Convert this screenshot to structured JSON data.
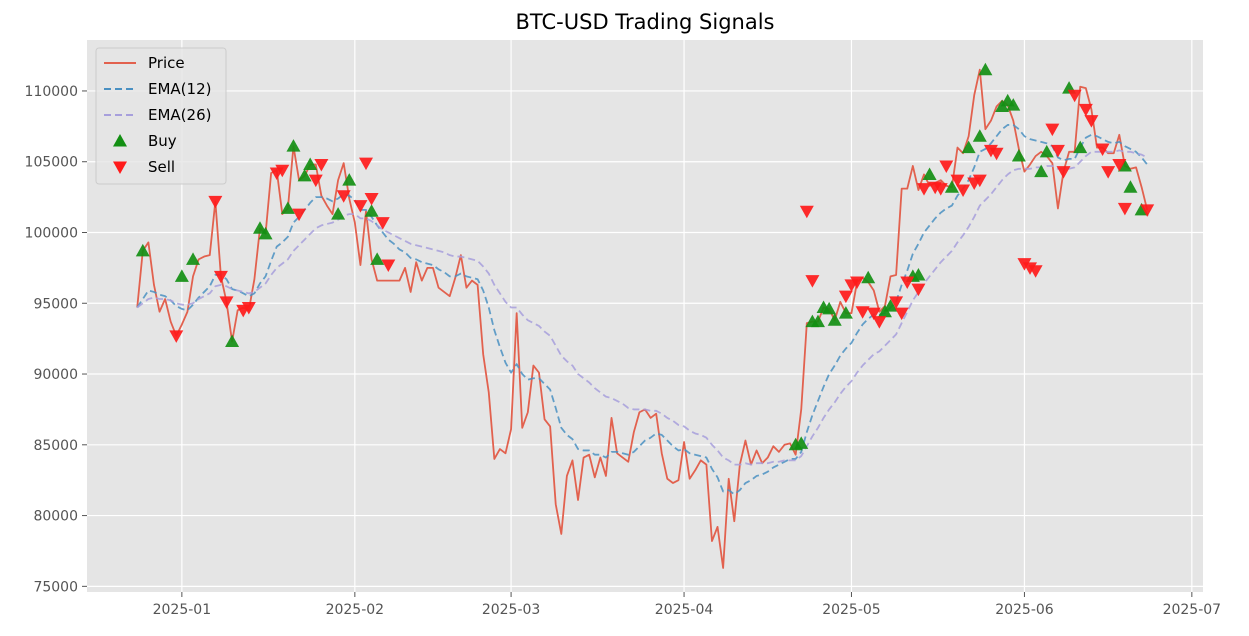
{
  "chart_data": {
    "type": "line",
    "title": "BTC-USD Trading Signals",
    "xlabel": "",
    "ylabel": "",
    "start_date": "2024-12-24",
    "xlim": [
      "2024-12-15",
      "2025-07-03"
    ],
    "ylim": [
      74600,
      113600
    ],
    "grid": true,
    "legend_position": "upper left",
    "x_ticks": [
      "2025-01-01",
      "2025-02-01",
      "2025-03-01",
      "2025-04-01",
      "2025-05-01",
      "2025-06-01",
      "2025-07-01"
    ],
    "x_tick_labels": [
      "2025-01",
      "2025-02",
      "2025-03",
      "2025-04",
      "2025-05",
      "2025-06",
      "2025-07"
    ],
    "y_ticks": [
      75000,
      80000,
      85000,
      90000,
      95000,
      100000,
      105000,
      110000
    ],
    "y_tick_labels": [
      "75000",
      "80000",
      "85000",
      "90000",
      "95000",
      "100000",
      "105000",
      "110000"
    ],
    "colors": {
      "price": "#e2614e",
      "ema12": "#4a90c2",
      "ema26": "#a79fdc",
      "buy": "#138f13",
      "sell": "#ff1a1a",
      "plot_bg": "#e5e5e5",
      "grid": "#ffffff"
    },
    "series": [
      {
        "name": "Price",
        "style": "solid",
        "values": [
          94700,
          98700,
          99300,
          96300,
          94400,
          95300,
          93700,
          92700,
          93500,
          94400,
          96900,
          98100,
          98300,
          98400,
          102200,
          96900,
          95100,
          92300,
          94500,
          94700,
          94500,
          96700,
          100300,
          99900,
          104200,
          104400,
          101300,
          101700,
          106100,
          103700,
          104000,
          104800,
          104800,
          102600,
          101900,
          101300,
          103700,
          104900,
          102400,
          100700,
          97700,
          101500,
          98100,
          96600,
          96600,
          96600,
          96600,
          96600,
          97500,
          95800,
          97900,
          96600,
          97500,
          97500,
          96100,
          95800,
          95500,
          96800,
          98400,
          96100,
          96600,
          96300,
          91400,
          88700,
          84000,
          84700,
          84400,
          86100,
          94300,
          86200,
          87300,
          90600,
          90100,
          86800,
          86300,
          80800,
          78700,
          82800,
          83900,
          81100,
          84100,
          84300,
          82700,
          84100,
          82800,
          86900,
          84400,
          84100,
          83800,
          85900,
          87300,
          87500,
          86900,
          87200,
          84400,
          82600,
          82300,
          82500,
          85200,
          82600,
          83200,
          83900,
          83600,
          78200,
          79200,
          76300,
          82600,
          79600,
          83600,
          85300,
          83600,
          84600,
          83700,
          84100,
          84900,
          84500,
          85000,
          85100,
          84300,
          87500,
          93600,
          93700,
          93700,
          94700,
          94600,
          93800,
          95100,
          94300,
          94300,
          96500,
          96800,
          96500,
          95900,
          94400,
          94800,
          96900,
          97000,
          103100,
          103100,
          104700,
          103000,
          104100,
          103300,
          103500,
          103700,
          103300,
          103200,
          106000,
          105600,
          106800,
          109700,
          111500,
          107300,
          107900,
          108900,
          109300,
          109000,
          107900,
          105900,
          104300,
          104800,
          105400,
          105700,
          105400,
          104900,
          101700,
          104300,
          105700,
          105700,
          110300,
          110200,
          108700,
          106000,
          106000,
          105600,
          105600,
          106900,
          104700,
          104500,
          104600,
          103200,
          101600
        ]
      },
      {
        "name": "EMA(12)",
        "style": "dashed",
        "values": [
          94700,
          95300,
          95900,
          95800,
          95600,
          95500,
          95200,
          94800,
          94600,
          94500,
          94900,
          95400,
          95800,
          96200,
          97000,
          97000,
          96700,
          96000,
          95900,
          95700,
          95500,
          95700,
          96400,
          96900,
          98000,
          99000,
          99300,
          99700,
          100700,
          101100,
          101600,
          102100,
          102500,
          102500,
          102400,
          102200,
          102400,
          102700,
          102600,
          102300,
          101600,
          101600,
          101100,
          100500,
          100000,
          99500,
          99200,
          98800,
          98600,
          98200,
          98100,
          97900,
          97800,
          97700,
          97400,
          97200,
          96900,
          96900,
          97100,
          96900,
          96800,
          96700,
          95900,
          94700,
          93100,
          91900,
          90800,
          90100,
          90700,
          90000,
          89600,
          89700,
          89700,
          89300,
          88900,
          87600,
          86200,
          85700,
          85400,
          84700,
          84600,
          84600,
          84300,
          84300,
          84100,
          84500,
          84500,
          84400,
          84300,
          84500,
          84900,
          85300,
          85500,
          85800,
          85700,
          85300,
          84900,
          84600,
          84700,
          84400,
          84300,
          84200,
          84100,
          83300,
          82700,
          81700,
          81800,
          81500,
          81800,
          82300,
          82500,
          82800,
          82900,
          83100,
          83400,
          83600,
          83800,
          84000,
          84000,
          84500,
          85900,
          87100,
          88100,
          89100,
          90000,
          90600,
          91300,
          91800,
          92200,
          92900,
          93500,
          93900,
          94200,
          94200,
          94300,
          94700,
          95100,
          96300,
          97300,
          98500,
          99200,
          100000,
          100500,
          101000,
          101400,
          101700,
          101900,
          102600,
          103100,
          103700,
          104600,
          105700,
          105900,
          106300,
          106800,
          107300,
          107600,
          107600,
          107300,
          106800,
          106600,
          106500,
          106400,
          106300,
          106100,
          105300,
          105100,
          105200,
          105200,
          106000,
          106700,
          106900,
          106800,
          106600,
          106400,
          106300,
          106400,
          106100,
          105900,
          105700,
          105300,
          104800
        ]
      },
      {
        "name": "EMA(26)",
        "style": "dashed",
        "values": [
          94700,
          95000,
          95300,
          95400,
          95300,
          95300,
          95200,
          95000,
          94900,
          94900,
          95000,
          95300,
          95500,
          95700,
          96200,
          96300,
          96200,
          96000,
          95900,
          95800,
          95700,
          95800,
          96100,
          96400,
          97000,
          97500,
          97800,
          98100,
          98700,
          99100,
          99500,
          99900,
          100300,
          100500,
          100600,
          100700,
          100900,
          101200,
          101300,
          101300,
          101000,
          101000,
          100800,
          100500,
          100200,
          100000,
          99800,
          99600,
          99400,
          99200,
          99100,
          99000,
          98900,
          98800,
          98700,
          98600,
          98400,
          98300,
          98300,
          98200,
          98100,
          98000,
          97600,
          97100,
          96300,
          95700,
          95100,
          94700,
          94700,
          94200,
          93800,
          93600,
          93400,
          93000,
          92700,
          92000,
          91300,
          90900,
          90600,
          90000,
          89700,
          89400,
          89000,
          88700,
          88400,
          88300,
          88100,
          87900,
          87600,
          87500,
          87500,
          87500,
          87400,
          87400,
          87200,
          86900,
          86700,
          86400,
          86300,
          86000,
          85800,
          85700,
          85500,
          85000,
          84600,
          84100,
          83900,
          83600,
          83600,
          83700,
          83600,
          83700,
          83700,
          83700,
          83800,
          83800,
          83900,
          83900,
          83900,
          84200,
          84900,
          85600,
          86200,
          86900,
          87500,
          88000,
          88600,
          89100,
          89500,
          90100,
          90600,
          91000,
          91400,
          91600,
          92000,
          92400,
          92800,
          93600,
          94400,
          95200,
          95800,
          96400,
          96900,
          97400,
          97900,
          98300,
          98700,
          99300,
          99800,
          100400,
          101100,
          101900,
          102300,
          102700,
          103200,
          103700,
          104100,
          104400,
          104500,
          104500,
          104500,
          104600,
          104600,
          104700,
          104700,
          104500,
          104500,
          104500,
          104600,
          105000,
          105400,
          105700,
          105700,
          105700,
          105700,
          105700,
          105800,
          105700,
          105700,
          105600,
          105500,
          105300
        ]
      },
      {
        "name": "Buy",
        "marker": "triangle-up",
        "days": [
          1,
          8,
          10,
          17,
          22,
          23,
          27,
          28,
          30,
          31,
          36,
          38,
          42,
          43,
          118,
          119,
          121,
          122,
          123,
          124,
          125,
          127,
          131,
          134,
          135,
          139,
          140,
          142,
          146,
          149,
          151,
          152,
          155,
          156,
          157,
          158,
          162,
          163,
          167,
          169,
          177,
          178,
          180
        ],
        "values": [
          98700,
          96900,
          98100,
          92300,
          100300,
          99900,
          101700,
          106100,
          104000,
          104800,
          101300,
          103700,
          101500,
          98100,
          85000,
          85100,
          93700,
          93700,
          94700,
          94600,
          93800,
          94300,
          96800,
          94400,
          94800,
          96900,
          97000,
          104100,
          103200,
          106000,
          106800,
          111500,
          108900,
          109300,
          109000,
          105400,
          104300,
          105700,
          110200,
          106000,
          104700,
          103200,
          101600
        ]
      },
      {
        "name": "Sell",
        "marker": "triangle-down",
        "days": [
          7,
          14,
          15,
          16,
          19,
          20,
          25,
          26,
          29,
          32,
          33,
          37,
          40,
          41,
          42,
          44,
          45,
          120,
          121,
          127,
          128,
          129,
          130,
          132,
          133,
          136,
          137,
          138,
          140,
          141,
          143,
          144,
          145,
          147,
          148,
          150,
          151,
          153,
          154,
          159,
          160,
          161,
          164,
          165,
          166,
          168,
          170,
          171,
          173,
          174,
          176,
          177,
          181
        ],
        "values": [
          92700,
          102200,
          96900,
          95100,
          94500,
          94700,
          104200,
          104400,
          101300,
          103700,
          104800,
          102600,
          101900,
          104900,
          102400,
          100700,
          97700,
          101500,
          96600,
          95500,
          96300,
          96500,
          94400,
          94300,
          93700,
          95100,
          94300,
          96500,
          96000,
          103100,
          103200,
          103100,
          104700,
          103700,
          103000,
          103500,
          103700,
          105800,
          105600,
          97800,
          97500,
          97300,
          107300,
          105800,
          104300,
          109700,
          108700,
          107900,
          105900,
          104300,
          104800,
          101700,
          101600
        ]
      }
    ]
  }
}
